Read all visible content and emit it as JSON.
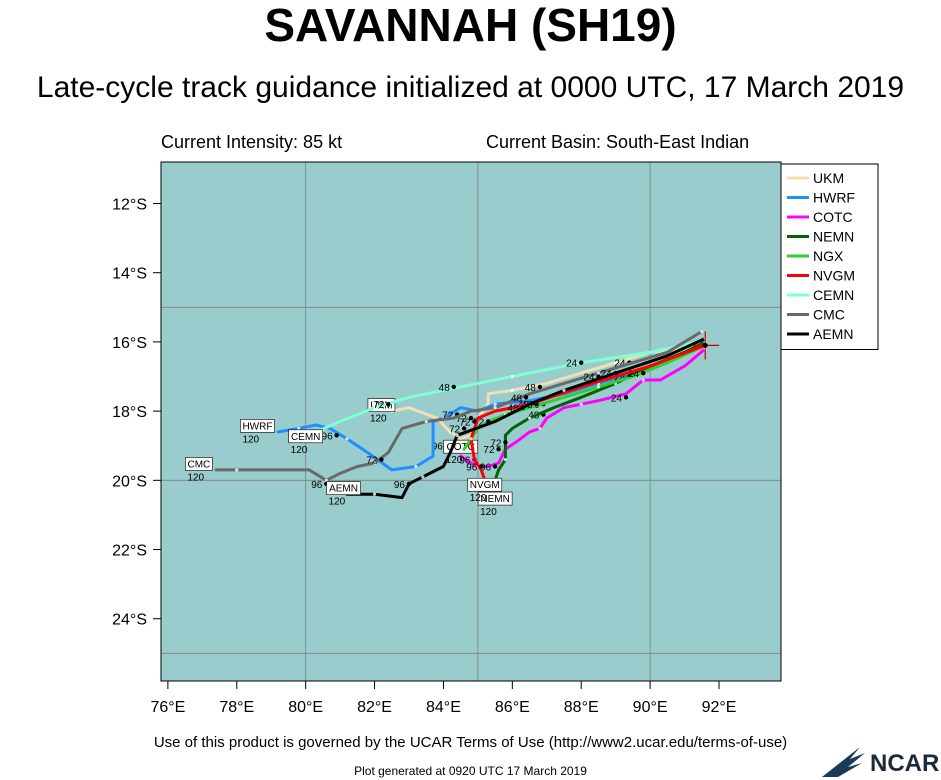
{
  "header": {
    "title": "SAVANNAH (SH19)",
    "subtitle": "Late-cycle track guidance initialized at 0000 UTC, 17 March 2019",
    "intensity": "Current Intensity: 85 kt",
    "basin": "Current Basin: South-East Indian"
  },
  "footer": {
    "terms": "Use of this product is governed by the UCAR Terms of Use (http://www2.ucar.edu/terms-of-use)",
    "generated": "Plot generated at 0920 UTC   17 March 2019",
    "logo_text": "NCAR"
  },
  "colors": {
    "ocean": "#99cccc",
    "grid": "#808080",
    "UKM": "#f5deb3",
    "HWRF": "#1e90ff",
    "COTC": "#ff00ff",
    "NEMN": "#006400",
    "NGX": "#32cd32",
    "NVGM": "#ff0000",
    "CEMN": "#7fffd4",
    "CMC": "#696969",
    "AEMN": "#000000",
    "storm_marker": "#cc0000"
  },
  "chart_data": {
    "type": "line",
    "xlim": [
      75.8,
      93.8
    ],
    "ylim": [
      -25.8,
      -10.8
    ],
    "x_ticks": [
      76,
      78,
      80,
      82,
      84,
      86,
      88,
      90,
      92
    ],
    "x_tick_labels": [
      "76°E",
      "78°E",
      "80°E",
      "82°E",
      "84°E",
      "86°E",
      "88°E",
      "90°E",
      "92°E"
    ],
    "y_ticks": [
      -12,
      -14,
      -16,
      -18,
      -20,
      -22,
      -24
    ],
    "y_tick_labels": [
      "12°S",
      "14°S",
      "16°S",
      "18°S",
      "20°S",
      "22°S",
      "24°S"
    ],
    "grid_lon": [
      80,
      85,
      90
    ],
    "grid_lat": [
      -15,
      -20,
      -25
    ],
    "legend_position": "top-right",
    "current_position": [
      91.6,
      -16.1
    ],
    "series": [
      {
        "name": "UKM",
        "points": [
          [
            91.5,
            -16.0
          ],
          [
            91.0,
            -16.2
          ],
          [
            90.0,
            -16.3
          ],
          [
            89.0,
            -16.6
          ],
          [
            88.0,
            -16.9
          ],
          [
            87.0,
            -17.2
          ],
          [
            86.0,
            -17.4
          ],
          [
            85.3,
            -17.5
          ],
          [
            85.3,
            -17.8
          ],
          [
            85.0,
            -18.2
          ],
          [
            84.8,
            -18.7
          ],
          [
            84.5,
            -18.8
          ],
          [
            84.2,
            -18.6
          ],
          [
            83.8,
            -18.2
          ],
          [
            83.0,
            -17.9
          ],
          [
            82.5,
            -18.0
          ]
        ],
        "labels": [
          {
            "text": "24",
            "at": [
              89.4,
              -16.6
            ]
          },
          {
            "text": "48",
            "at": [
              86.8,
              -17.3
            ]
          },
          {
            "text": "72",
            "at": [
              84.8,
              -18.2
            ]
          },
          {
            "text": "96",
            "at": [
              84.1,
              -19.0
            ]
          }
        ],
        "end_label": {
          "text": "UKM",
          "hour": "120",
          "at": [
            82.2,
            -17.9
          ]
        }
      },
      {
        "name": "HWRF",
        "points": [
          [
            91.5,
            -16.1
          ],
          [
            90.5,
            -16.6
          ],
          [
            89.5,
            -16.9
          ],
          [
            88.5,
            -17.2
          ],
          [
            87.5,
            -17.5
          ],
          [
            86.5,
            -17.7
          ],
          [
            85.5,
            -17.8
          ],
          [
            85.0,
            -18.0
          ],
          [
            84.5,
            -17.9
          ],
          [
            84.0,
            -18.2
          ],
          [
            83.7,
            -18.3
          ],
          [
            83.7,
            -19.3
          ],
          [
            83.2,
            -19.6
          ],
          [
            82.5,
            -19.7
          ],
          [
            81.8,
            -19.2
          ],
          [
            81.2,
            -18.8
          ],
          [
            80.7,
            -18.5
          ],
          [
            80.3,
            -18.4
          ],
          [
            79.8,
            -18.5
          ],
          [
            79.2,
            -18.6
          ]
        ],
        "labels": [
          {
            "text": "24",
            "at": [
              89.8,
              -16.9
            ]
          },
          {
            "text": "48",
            "at": [
              86.6,
              -17.8
            ]
          },
          {
            "text": "72",
            "at": [
              84.4,
              -18.1
            ]
          },
          {
            "text": "96",
            "at": [
              80.9,
              -18.7
            ]
          }
        ],
        "end_label": {
          "text": "HWRF",
          "hour": "120",
          "at": [
            78.6,
            -18.5
          ]
        }
      },
      {
        "name": "COTC",
        "points": [
          [
            91.6,
            -16.2
          ],
          [
            91.0,
            -16.7
          ],
          [
            90.3,
            -17.1
          ],
          [
            89.8,
            -17.1
          ],
          [
            89.3,
            -17.5
          ],
          [
            88.5,
            -17.7
          ],
          [
            88.0,
            -17.8
          ],
          [
            87.5,
            -17.9
          ],
          [
            87.0,
            -18.2
          ],
          [
            86.8,
            -18.5
          ],
          [
            86.5,
            -18.6
          ],
          [
            86.1,
            -18.9
          ],
          [
            85.8,
            -19.1
          ],
          [
            85.6,
            -19.5
          ],
          [
            85.3,
            -19.6
          ],
          [
            85.0,
            -19.6
          ],
          [
            84.8,
            -19.5
          ],
          [
            84.5,
            -19.3
          ]
        ],
        "labels": [
          {
            "text": "24",
            "at": [
              89.3,
              -17.6
            ]
          },
          {
            "text": "48",
            "at": [
              86.9,
              -18.1
            ]
          },
          {
            "text": "72",
            "at": [
              85.6,
              -19.1
            ]
          },
          {
            "text": "96",
            "at": [
              84.9,
              -19.4
            ]
          }
        ],
        "end_label": {
          "text": "COTC",
          "hour": "120",
          "at": [
            84.5,
            -19.1
          ]
        }
      },
      {
        "name": "NEMN",
        "points": [
          [
            91.6,
            -16.0
          ],
          [
            91.0,
            -16.3
          ],
          [
            90.0,
            -16.7
          ],
          [
            89.0,
            -17.2
          ],
          [
            88.0,
            -17.6
          ],
          [
            87.2,
            -17.9
          ],
          [
            86.5,
            -18.2
          ],
          [
            86.0,
            -18.5
          ],
          [
            85.8,
            -18.7
          ],
          [
            85.8,
            -19.4
          ],
          [
            85.6,
            -19.7
          ],
          [
            85.5,
            -20.0
          ],
          [
            85.5,
            -20.2
          ]
        ],
        "labels": [
          {
            "text": "24",
            "at": [
              89.4,
              -17.0
            ]
          },
          {
            "text": "48",
            "at": [
              86.9,
              -17.8
            ]
          },
          {
            "text": "72",
            "at": [
              85.8,
              -18.9
            ]
          },
          {
            "text": "96",
            "at": [
              85.5,
              -19.6
            ]
          }
        ],
        "end_label": {
          "text": "NEMN",
          "hour": "120",
          "at": [
            85.5,
            -20.6
          ]
        }
      },
      {
        "name": "NGX",
        "points": [
          [
            91.6,
            -16.1
          ],
          [
            90.5,
            -16.6
          ],
          [
            89.5,
            -17.0
          ],
          [
            88.5,
            -17.3
          ],
          [
            87.5,
            -17.6
          ],
          [
            86.5,
            -17.9
          ],
          [
            85.8,
            -18.1
          ],
          [
            85.3,
            -18.3
          ],
          [
            85.0,
            -18.5
          ],
          [
            84.8,
            -18.8
          ],
          [
            84.6,
            -19.1
          ]
        ],
        "labels": [
          {
            "text": "24",
            "at": [
              89.8,
              -16.9
            ]
          },
          {
            "text": "48",
            "at": [
              86.7,
              -17.8
            ]
          },
          {
            "text": "72",
            "at": [
              85.3,
              -18.3
            ]
          }
        ],
        "end_label": {
          "text": "",
          "hour": "",
          "at": [
            84.6,
            -19.1
          ]
        }
      },
      {
        "name": "NVGM",
        "points": [
          [
            91.6,
            -16.1
          ],
          [
            90.0,
            -16.7
          ],
          [
            88.0,
            -17.3
          ],
          [
            86.5,
            -17.8
          ],
          [
            85.5,
            -18.0
          ],
          [
            85.0,
            -18.2
          ],
          [
            84.8,
            -18.8
          ],
          [
            84.9,
            -19.4
          ],
          [
            85.1,
            -19.7
          ],
          [
            85.2,
            -20.0
          ]
        ],
        "labels": [
          {
            "text": "72",
            "at": [
              84.9,
              -18.3
            ]
          },
          {
            "text": "96",
            "at": [
              85.1,
              -19.6
            ]
          }
        ],
        "end_label": {
          "text": "NVGM",
          "hour": "120",
          "at": [
            85.2,
            -20.2
          ]
        }
      },
      {
        "name": "CEMN",
        "points": [
          [
            91.4,
            -16.0
          ],
          [
            90.0,
            -16.3
          ],
          [
            88.0,
            -16.6
          ],
          [
            86.0,
            -17.0
          ],
          [
            84.0,
            -17.4
          ],
          [
            83.0,
            -17.6
          ],
          [
            82.0,
            -17.9
          ],
          [
            81.0,
            -18.3
          ],
          [
            80.3,
            -18.6
          ]
        ],
        "labels": [
          {
            "text": "24",
            "at": [
              88.0,
              -16.6
            ]
          },
          {
            "text": "48",
            "at": [
              84.3,
              -17.3
            ]
          },
          {
            "text": "72",
            "at": [
              82.4,
              -17.8
            ]
          }
        ],
        "end_label": {
          "text": "CEMN",
          "hour": "120",
          "at": [
            80.0,
            -18.8
          ]
        }
      },
      {
        "name": "CMC",
        "points": [
          [
            91.5,
            -15.7
          ],
          [
            90.5,
            -16.3
          ],
          [
            89.5,
            -16.6
          ],
          [
            88.5,
            -16.9
          ],
          [
            87.5,
            -17.2
          ],
          [
            86.5,
            -17.5
          ],
          [
            85.5,
            -17.9
          ],
          [
            84.8,
            -18.0
          ],
          [
            84.3,
            -18.2
          ],
          [
            83.5,
            -18.3
          ],
          [
            82.8,
            -18.5
          ],
          [
            82.4,
            -19.2
          ],
          [
            82.0,
            -19.5
          ],
          [
            81.5,
            -19.6
          ],
          [
            81.0,
            -19.8
          ],
          [
            80.6,
            -20.0
          ],
          [
            80.1,
            -19.7
          ],
          [
            79.0,
            -19.7
          ],
          [
            78.0,
            -19.7
          ],
          [
            77.4,
            -19.7
          ]
        ],
        "labels": [
          {
            "text": "24",
            "at": [
              88.5,
              -17.0
            ]
          },
          {
            "text": "48",
            "at": [
              86.4,
              -17.6
            ]
          },
          {
            "text": "72",
            "at": [
              82.2,
              -19.4
            ]
          },
          {
            "text": "96",
            "at": [
              80.6,
              -20.1
            ]
          }
        ],
        "end_label": {
          "text": "CMC",
          "hour": "120",
          "at": [
            76.9,
            -19.6
          ]
        }
      },
      {
        "name": "AEMN",
        "points": [
          [
            91.6,
            -15.9
          ],
          [
            90.5,
            -16.4
          ],
          [
            89.0,
            -16.9
          ],
          [
            87.5,
            -17.4
          ],
          [
            86.5,
            -17.8
          ],
          [
            85.5,
            -18.3
          ],
          [
            84.4,
            -18.7
          ],
          [
            84.2,
            -19.2
          ],
          [
            84.0,
            -19.6
          ],
          [
            83.4,
            -19.9
          ],
          [
            83.0,
            -20.1
          ],
          [
            82.8,
            -20.5
          ],
          [
            82.0,
            -20.4
          ],
          [
            81.5,
            -20.4
          ],
          [
            81.2,
            -20.4
          ]
        ],
        "labels": [
          {
            "text": "24",
            "at": [
              89.0,
              -16.9
            ]
          },
          {
            "text": "48",
            "at": [
              86.3,
              -17.9
            ]
          },
          {
            "text": "72",
            "at": [
              84.6,
              -18.5
            ]
          },
          {
            "text": "96",
            "at": [
              83.0,
              -20.1
            ]
          }
        ],
        "end_label": {
          "text": "AEMN",
          "hour": "120",
          "at": [
            81.1,
            -20.3
          ]
        }
      }
    ]
  }
}
